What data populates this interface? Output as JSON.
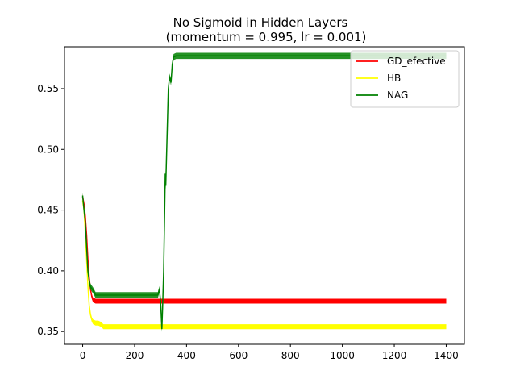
{
  "chart_data": {
    "type": "line",
    "title": "No Sigmoid in Hidden Layers",
    "subtitle": "(momentum = 0.995, lr = 0.001)",
    "xlabel": "",
    "ylabel": "",
    "xlim": [
      -70,
      1470
    ],
    "ylim": [
      0.3395,
      0.5845
    ],
    "xticks": [
      0,
      200,
      400,
      600,
      800,
      1000,
      1200,
      1400
    ],
    "yticks": [
      0.35,
      0.4,
      0.45,
      0.5,
      0.55
    ],
    "ytick_labels": [
      "0.35",
      "0.40",
      "0.45",
      "0.50",
      "0.55"
    ],
    "grid": false,
    "legend_position": "top-right",
    "series": [
      {
        "name": "GD_efective",
        "color": "#ff0000",
        "x": [
          0,
          5,
          10,
          15,
          20,
          25,
          30,
          35,
          40,
          50,
          60,
          80,
          120,
          200,
          300,
          400,
          600,
          800,
          1000,
          1200,
          1400
        ],
        "y": [
          0.461,
          0.455,
          0.445,
          0.43,
          0.41,
          0.395,
          0.385,
          0.379,
          0.376,
          0.375,
          0.375,
          0.375,
          0.375,
          0.375,
          0.375,
          0.375,
          0.375,
          0.375,
          0.375,
          0.375,
          0.375
        ],
        "band": 0.004
      },
      {
        "name": "HB",
        "color": "#ffff00",
        "x": [
          0,
          5,
          10,
          15,
          20,
          25,
          30,
          35,
          40,
          50,
          60,
          70,
          80,
          120,
          200,
          400,
          600,
          800,
          1000,
          1200,
          1400
        ],
        "y": [
          0.458,
          0.45,
          0.432,
          0.41,
          0.388,
          0.372,
          0.364,
          0.36,
          0.358,
          0.357,
          0.357,
          0.356,
          0.354,
          0.354,
          0.354,
          0.354,
          0.354,
          0.354,
          0.354,
          0.354,
          0.354
        ],
        "band": 0.004
      },
      {
        "name": "NAG",
        "color": "#008000",
        "x": [
          0,
          5,
          10,
          15,
          20,
          25,
          30,
          40,
          50,
          60,
          100,
          200,
          290,
          295,
          300,
          305,
          308,
          312,
          318,
          320,
          325,
          330,
          335,
          340,
          345,
          350,
          360,
          400,
          600,
          800,
          1000,
          1200,
          1400
        ],
        "y": [
          0.462,
          0.45,
          0.44,
          0.42,
          0.4,
          0.392,
          0.387,
          0.384,
          0.38,
          0.38,
          0.38,
          0.38,
          0.38,
          0.385,
          0.375,
          0.352,
          0.37,
          0.4,
          0.48,
          0.47,
          0.51,
          0.55,
          0.56,
          0.555,
          0.57,
          0.576,
          0.577,
          0.577,
          0.577,
          0.577,
          0.577,
          0.577,
          0.577
        ],
        "band": 0.005
      }
    ]
  }
}
